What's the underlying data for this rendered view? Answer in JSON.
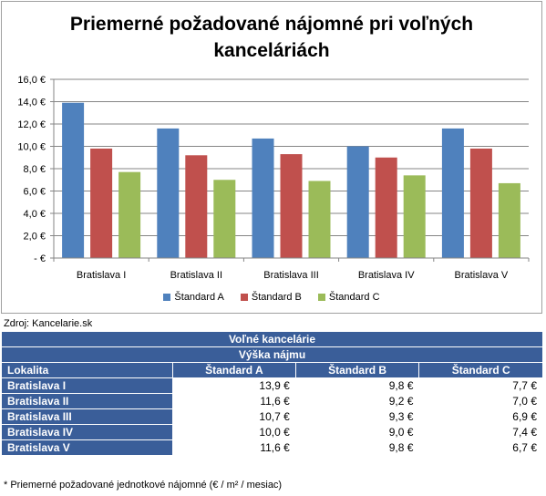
{
  "chart_data": {
    "type": "bar",
    "title": "Priemerné požadované nájomné pri voľných kanceláriách",
    "title_lines": [
      "Priemerné požadované nájomné pri voľných",
      "kanceláriách"
    ],
    "categories": [
      "Bratislava I",
      "Bratislava II",
      "Bratislava III",
      "Bratislava IV",
      "Bratislava V"
    ],
    "series": [
      {
        "name": "Štandard A",
        "values": [
          13.9,
          11.6,
          10.7,
          10.0,
          11.6
        ],
        "color": "#4f81bd"
      },
      {
        "name": "Štandard B",
        "values": [
          9.8,
          9.2,
          9.3,
          9.0,
          9.8
        ],
        "color": "#c0504d"
      },
      {
        "name": "Štandard C",
        "values": [
          7.7,
          7.0,
          6.9,
          7.4,
          6.7
        ],
        "color": "#9bbb59"
      }
    ],
    "ylim": [
      0,
      16
    ],
    "yticks": [
      0,
      2,
      4,
      6,
      8,
      10,
      12,
      14,
      16
    ],
    "ytick_labels": [
      " -  €",
      "2,0 €",
      "4,0 €",
      "6,0 €",
      "8,0 €",
      "10,0 €",
      "12,0 €",
      "14,0 €",
      "16,0 €"
    ],
    "grid": true,
    "legend": "bottom",
    "xlabel": "",
    "ylabel": ""
  },
  "source": "Zdroj: Kancelarie.sk",
  "table": {
    "band_line1": "Voľné kancelárie",
    "band_line2": "Výška nájmu",
    "headers": [
      "Lokalita",
      "Štandard A",
      "Štandard B",
      "Štandard C"
    ],
    "rows": [
      [
        "Bratislava I",
        "13,9 €",
        "9,8 €",
        "7,7 €"
      ],
      [
        "Bratislava II",
        "11,6 €",
        "9,2 €",
        "7,0 €"
      ],
      [
        "Bratislava III",
        "10,7 €",
        "9,3 €",
        "6,9 €"
      ],
      [
        "Bratislava IV",
        "10,0 €",
        "9,0 €",
        "7,4 €"
      ],
      [
        "Bratislava V",
        "11,6 €",
        "9,8 €",
        "6,7 €"
      ]
    ]
  },
  "footnote": "* Priemerné požadované jednotkové nájomné (€ / m² / mesiac)"
}
